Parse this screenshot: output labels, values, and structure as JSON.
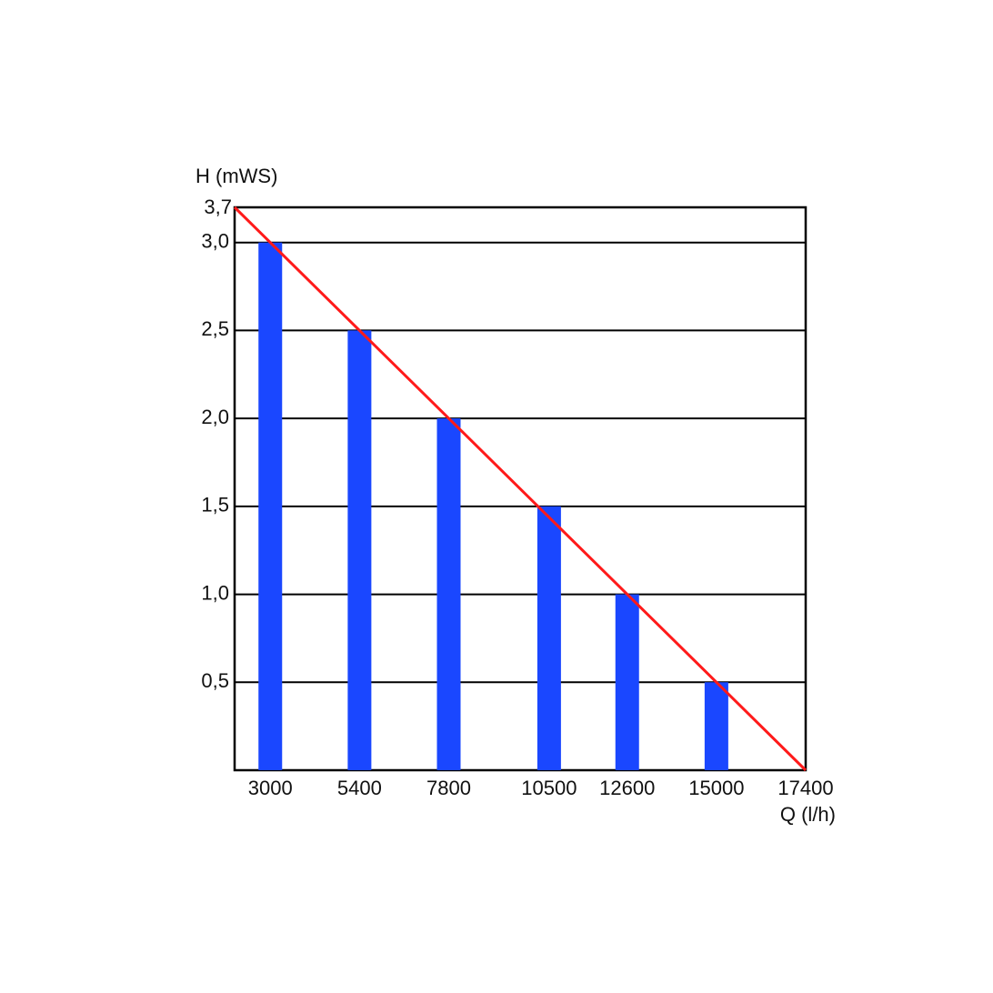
{
  "chart_data": {
    "type": "bar",
    "x_label": "Q (l/h)",
    "y_label": "H (mWS)",
    "y_top_label": "3,7",
    "x": [
      3000,
      5400,
      7800,
      10500,
      12600,
      15000
    ],
    "series": [
      {
        "type": "bar",
        "color": "#1a47ff",
        "x": [
          3000,
          5400,
          7800,
          10500,
          12600,
          15000
        ],
        "values": [
          3.0,
          2.5,
          2.0,
          1.5,
          1.0,
          0.5
        ]
      },
      {
        "type": "line",
        "color": "#ff1a1a",
        "x": [
          2040,
          17400
        ],
        "values": [
          3.2,
          0
        ]
      }
    ],
    "xlim": [
      2040,
      17400
    ],
    "xticks": [
      3000,
      5400,
      7800,
      10500,
      12600,
      15000,
      17400
    ],
    "ylim": [
      0,
      3.2
    ],
    "yticks": [
      {
        "value": 0.5,
        "label": "0,5"
      },
      {
        "value": 1.0,
        "label": "1,0"
      },
      {
        "value": 1.5,
        "label": "1,5"
      },
      {
        "value": 2.0,
        "label": "2,0"
      },
      {
        "value": 2.5,
        "label": "2,5"
      },
      {
        "value": 3.0,
        "label": "3,0"
      }
    ],
    "grid": true
  }
}
